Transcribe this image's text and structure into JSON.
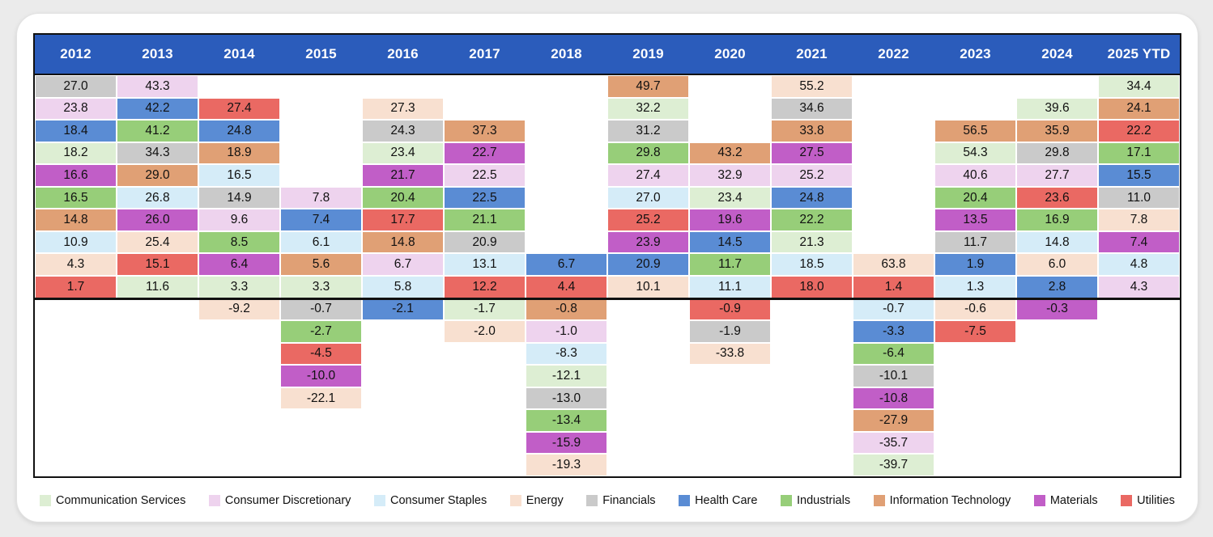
{
  "page": {
    "background_color": "#ebebeb",
    "card_background_color": "#ffffff"
  },
  "header": {
    "background_color": "#2b5cbb",
    "text_color": "#ffffff"
  },
  "chart_data": {
    "type": "table",
    "subtype": "sector-annual-returns-quilt",
    "title": "",
    "layout": {
      "rows_above_zero_line": 10,
      "rows_below_zero_line": 8,
      "zero_divider": true,
      "legend_position": "bottom"
    },
    "years": [
      "2012",
      "2013",
      "2014",
      "2015",
      "2016",
      "2017",
      "2018",
      "2019",
      "2020",
      "2021",
      "2022",
      "2023",
      "2024",
      "2025 YTD"
    ],
    "sectors": [
      {
        "name": "Communication Services",
        "color": "#ddeed3"
      },
      {
        "name": "Consumer Discretionary",
        "color": "#eed3ee"
      },
      {
        "name": "Consumer Staples",
        "color": "#d5ecf8"
      },
      {
        "name": "Energy",
        "color": "#f8e0d0"
      },
      {
        "name": "Financials",
        "color": "#cacaca"
      },
      {
        "name": "Health Care",
        "color": "#5a8cd4"
      },
      {
        "name": "Industrials",
        "color": "#97ce79"
      },
      {
        "name": "Information Technology",
        "color": "#e0a075"
      },
      {
        "name": "Materials",
        "color": "#c15ec7"
      },
      {
        "name": "Utilities",
        "color": "#ea6963"
      }
    ],
    "columns": [
      {
        "year": "2012",
        "entries": [
          {
            "sector": "Financials",
            "value": 27.0
          },
          {
            "sector": "Consumer Discretionary",
            "value": 23.8
          },
          {
            "sector": "Health Care",
            "value": 18.4
          },
          {
            "sector": "Communication Services",
            "value": 18.2
          },
          {
            "sector": "Materials",
            "value": 16.6
          },
          {
            "sector": "Industrials",
            "value": 16.5
          },
          {
            "sector": "Information Technology",
            "value": 14.8
          },
          {
            "sector": "Consumer Staples",
            "value": 10.9
          },
          {
            "sector": "Energy",
            "value": 4.3
          },
          {
            "sector": "Utilities",
            "value": 1.7
          }
        ]
      },
      {
        "year": "2013",
        "entries": [
          {
            "sector": "Consumer Discretionary",
            "value": 43.3
          },
          {
            "sector": "Health Care",
            "value": 42.2
          },
          {
            "sector": "Industrials",
            "value": 41.2
          },
          {
            "sector": "Financials",
            "value": 34.3
          },
          {
            "sector": "Information Technology",
            "value": 29.0
          },
          {
            "sector": "Consumer Staples",
            "value": 26.8
          },
          {
            "sector": "Materials",
            "value": 26.0
          },
          {
            "sector": "Energy",
            "value": 25.4
          },
          {
            "sector": "Utilities",
            "value": 15.1
          },
          {
            "sector": "Communication Services",
            "value": 11.6
          }
        ]
      },
      {
        "year": "2014",
        "entries": [
          {
            "sector": "Utilities",
            "value": 27.4
          },
          {
            "sector": "Health Care",
            "value": 24.8
          },
          {
            "sector": "Information Technology",
            "value": 18.9
          },
          {
            "sector": "Consumer Staples",
            "value": 16.5
          },
          {
            "sector": "Financials",
            "value": 14.9
          },
          {
            "sector": "Consumer Discretionary",
            "value": 9.6
          },
          {
            "sector": "Industrials",
            "value": 8.5
          },
          {
            "sector": "Materials",
            "value": 6.4
          },
          {
            "sector": "Communication Services",
            "value": 3.3
          },
          {
            "sector": "Energy",
            "value": -9.2
          }
        ]
      },
      {
        "year": "2015",
        "entries": [
          {
            "sector": "Consumer Discretionary",
            "value": 7.8
          },
          {
            "sector": "Health Care",
            "value": 7.4
          },
          {
            "sector": "Consumer Staples",
            "value": 6.1
          },
          {
            "sector": "Information Technology",
            "value": 5.6
          },
          {
            "sector": "Communication Services",
            "value": 3.3
          },
          {
            "sector": "Financials",
            "value": -0.7
          },
          {
            "sector": "Industrials",
            "value": -2.7
          },
          {
            "sector": "Utilities",
            "value": -4.5
          },
          {
            "sector": "Materials",
            "value": -10.0
          },
          {
            "sector": "Energy",
            "value": -22.1
          }
        ]
      },
      {
        "year": "2016",
        "entries": [
          {
            "sector": "Energy",
            "value": 27.3
          },
          {
            "sector": "Financials",
            "value": 24.3
          },
          {
            "sector": "Communication Services",
            "value": 23.4
          },
          {
            "sector": "Materials",
            "value": 21.7
          },
          {
            "sector": "Industrials",
            "value": 20.4
          },
          {
            "sector": "Utilities",
            "value": 17.7
          },
          {
            "sector": "Information Technology",
            "value": 14.8
          },
          {
            "sector": "Consumer Discretionary",
            "value": 6.7
          },
          {
            "sector": "Consumer Staples",
            "value": 5.8
          },
          {
            "sector": "Health Care",
            "value": -2.1
          }
        ]
      },
      {
        "year": "2017",
        "entries": [
          {
            "sector": "Information Technology",
            "value": 37.3
          },
          {
            "sector": "Materials",
            "value": 22.7
          },
          {
            "sector": "Consumer Discretionary",
            "value": 22.5
          },
          {
            "sector": "Health Care",
            "value": 22.5
          },
          {
            "sector": "Industrials",
            "value": 21.1
          },
          {
            "sector": "Financials",
            "value": 20.9
          },
          {
            "sector": "Consumer Staples",
            "value": 13.1
          },
          {
            "sector": "Utilities",
            "value": 12.2
          },
          {
            "sector": "Communication Services",
            "value": -1.7
          },
          {
            "sector": "Energy",
            "value": -2.0
          }
        ]
      },
      {
        "year": "2018",
        "entries": [
          {
            "sector": "Health Care",
            "value": 6.7
          },
          {
            "sector": "Utilities",
            "value": 4.4
          },
          {
            "sector": "Information Technology",
            "value": -0.8
          },
          {
            "sector": "Consumer Discretionary",
            "value": -1.0
          },
          {
            "sector": "Consumer Staples",
            "value": -8.3
          },
          {
            "sector": "Communication Services",
            "value": -12.1
          },
          {
            "sector": "Financials",
            "value": -13.0
          },
          {
            "sector": "Industrials",
            "value": -13.4
          },
          {
            "sector": "Materials",
            "value": -15.9
          },
          {
            "sector": "Energy",
            "value": -19.3
          }
        ]
      },
      {
        "year": "2019",
        "entries": [
          {
            "sector": "Information Technology",
            "value": 49.7
          },
          {
            "sector": "Communication Services",
            "value": 32.2
          },
          {
            "sector": "Financials",
            "value": 31.2
          },
          {
            "sector": "Industrials",
            "value": 29.8
          },
          {
            "sector": "Consumer Discretionary",
            "value": 27.4
          },
          {
            "sector": "Consumer Staples",
            "value": 27.0
          },
          {
            "sector": "Utilities",
            "value": 25.2
          },
          {
            "sector": "Materials",
            "value": 23.9
          },
          {
            "sector": "Health Care",
            "value": 20.9
          },
          {
            "sector": "Energy",
            "value": 10.1
          }
        ]
      },
      {
        "year": "2020",
        "entries": [
          {
            "sector": "Information Technology",
            "value": 43.2
          },
          {
            "sector": "Consumer Discretionary",
            "value": 32.9
          },
          {
            "sector": "Communication Services",
            "value": 23.4
          },
          {
            "sector": "Materials",
            "value": 19.6
          },
          {
            "sector": "Health Care",
            "value": 14.5
          },
          {
            "sector": "Industrials",
            "value": 11.7
          },
          {
            "sector": "Consumer Staples",
            "value": 11.1
          },
          {
            "sector": "Utilities",
            "value": -0.9
          },
          {
            "sector": "Financials",
            "value": -1.9
          },
          {
            "sector": "Energy",
            "value": -33.8
          }
        ]
      },
      {
        "year": "2021",
        "entries": [
          {
            "sector": "Energy",
            "value": 55.2
          },
          {
            "sector": "Financials",
            "value": 34.6
          },
          {
            "sector": "Information Technology",
            "value": 33.8
          },
          {
            "sector": "Materials",
            "value": 27.5
          },
          {
            "sector": "Consumer Discretionary",
            "value": 25.2
          },
          {
            "sector": "Health Care",
            "value": 24.8
          },
          {
            "sector": "Industrials",
            "value": 22.2
          },
          {
            "sector": "Communication Services",
            "value": 21.3
          },
          {
            "sector": "Consumer Staples",
            "value": 18.5
          },
          {
            "sector": "Utilities",
            "value": 18.0
          }
        ]
      },
      {
        "year": "2022",
        "entries": [
          {
            "sector": "Energy",
            "value": 63.8
          },
          {
            "sector": "Utilities",
            "value": 1.4
          },
          {
            "sector": "Consumer Staples",
            "value": -0.7
          },
          {
            "sector": "Health Care",
            "value": -3.3
          },
          {
            "sector": "Industrials",
            "value": -6.4
          },
          {
            "sector": "Financials",
            "value": -10.1
          },
          {
            "sector": "Materials",
            "value": -10.8
          },
          {
            "sector": "Information Technology",
            "value": -27.9
          },
          {
            "sector": "Consumer Discretionary",
            "value": -35.7
          },
          {
            "sector": "Communication Services",
            "value": -39.7
          }
        ]
      },
      {
        "year": "2023",
        "entries": [
          {
            "sector": "Information Technology",
            "value": 56.5
          },
          {
            "sector": "Communication Services",
            "value": 54.3
          },
          {
            "sector": "Consumer Discretionary",
            "value": 40.6
          },
          {
            "sector": "Industrials",
            "value": 20.4
          },
          {
            "sector": "Materials",
            "value": 13.5
          },
          {
            "sector": "Financials",
            "value": 11.7
          },
          {
            "sector": "Health Care",
            "value": 1.9
          },
          {
            "sector": "Consumer Staples",
            "value": 1.3
          },
          {
            "sector": "Energy",
            "value": -0.6
          },
          {
            "sector": "Utilities",
            "value": -7.5
          }
        ]
      },
      {
        "year": "2024",
        "entries": [
          {
            "sector": "Communication Services",
            "value": 39.6
          },
          {
            "sector": "Information Technology",
            "value": 35.9
          },
          {
            "sector": "Financials",
            "value": 29.8
          },
          {
            "sector": "Consumer Discretionary",
            "value": 27.7
          },
          {
            "sector": "Utilities",
            "value": 23.6
          },
          {
            "sector": "Industrials",
            "value": 16.9
          },
          {
            "sector": "Consumer Staples",
            "value": 14.8
          },
          {
            "sector": "Energy",
            "value": 6.0
          },
          {
            "sector": "Health Care",
            "value": 2.8
          },
          {
            "sector": "Materials",
            "value": -0.3
          }
        ]
      },
      {
        "year": "2025 YTD",
        "entries": [
          {
            "sector": "Communication Services",
            "value": 34.4
          },
          {
            "sector": "Information Technology",
            "value": 24.1
          },
          {
            "sector": "Utilities",
            "value": 22.2
          },
          {
            "sector": "Industrials",
            "value": 17.1
          },
          {
            "sector": "Health Care",
            "value": 15.5
          },
          {
            "sector": "Financials",
            "value": 11.0
          },
          {
            "sector": "Energy",
            "value": 7.8
          },
          {
            "sector": "Materials",
            "value": 7.4
          },
          {
            "sector": "Consumer Staples",
            "value": 4.8
          },
          {
            "sector": "Consumer Discretionary",
            "value": 4.3
          }
        ]
      }
    ]
  }
}
